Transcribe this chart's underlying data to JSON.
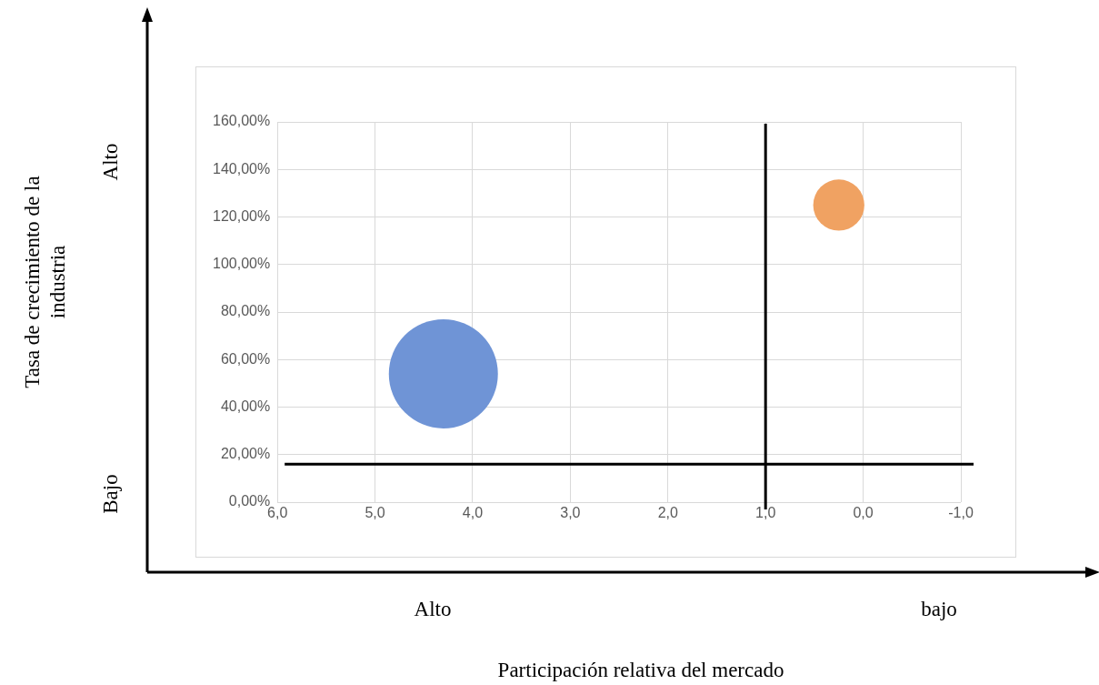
{
  "chart_data": {
    "type": "bubble",
    "series": [
      {
        "color": "#6f94d6",
        "x": [
          4.3
        ],
        "values": [
          54
        ],
        "sizes": [
          1
        ]
      },
      {
        "color": "#f0a262",
        "x": [
          0.25
        ],
        "values": [
          125
        ],
        "sizes": [
          0.22
        ]
      }
    ],
    "xlim": [
      6,
      -1
    ],
    "xticks": [
      {
        "value": 6,
        "label": "6,0"
      },
      {
        "value": 5,
        "label": "5,0"
      },
      {
        "value": 4,
        "label": "4,0"
      },
      {
        "value": 3,
        "label": "3,0"
      },
      {
        "value": 2,
        "label": "2,0"
      },
      {
        "value": 1,
        "label": "1,0"
      },
      {
        "value": 0,
        "label": "0,0"
      },
      {
        "value": -1,
        "label": "-1,0"
      }
    ],
    "ylim": [
      0,
      160
    ],
    "yticks": [
      {
        "value": 0,
        "label": "0,00%"
      },
      {
        "value": 20,
        "label": "20,00%"
      },
      {
        "value": 40,
        "label": "40,00%"
      },
      {
        "value": 60,
        "label": "60,00%"
      },
      {
        "value": 80,
        "label": "80,00%"
      },
      {
        "value": 100,
        "label": "100,00%"
      },
      {
        "value": 120,
        "label": "120,00%"
      },
      {
        "value": 140,
        "label": "140,00%"
      },
      {
        "value": 160,
        "label": "160,00%"
      }
    ],
    "ref_lines": [
      {
        "axis": "x",
        "value": 1,
        "color": "#000000"
      },
      {
        "axis": "y",
        "value": 16,
        "color": "#000000"
      }
    ],
    "annotations": [
      "Alto",
      "Bajo",
      "Alto",
      "bajo",
      "Participación relativa del mercado",
      "Tasa de crecimiento de la industria"
    ],
    "grid": true,
    "legend": false
  }
}
